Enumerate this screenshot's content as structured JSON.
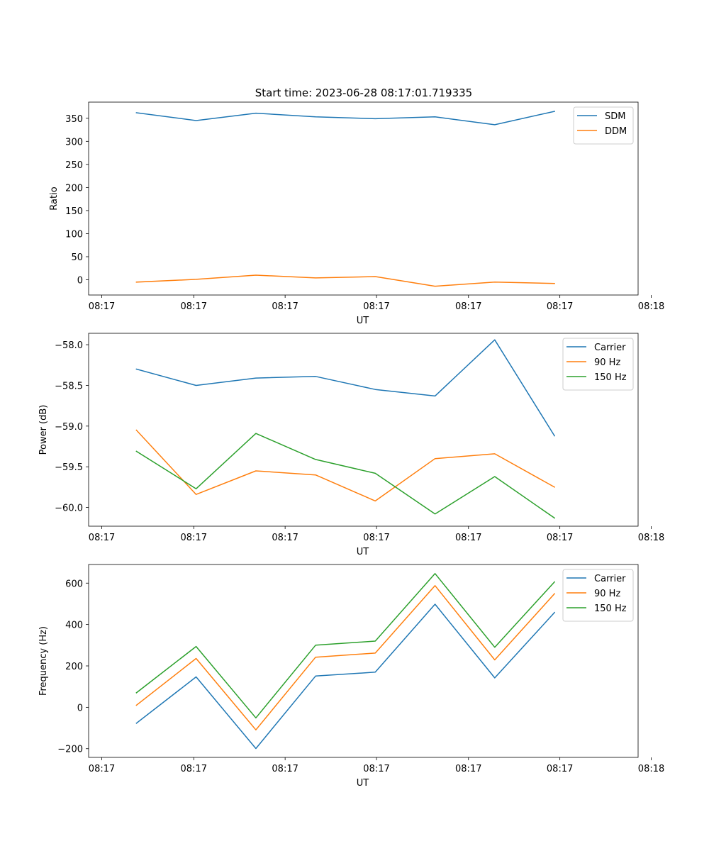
{
  "figure": {
    "title": "Start time: 2023-06-28 08:17:01.719335"
  },
  "colors": {
    "blue": "#1f77b4",
    "orange": "#ff7f0e",
    "green": "#2ca02c"
  },
  "chart_data": [
    {
      "type": "line",
      "title": "Start time: 2023-06-28 08:17:01.719335",
      "xlabel": "UT",
      "ylabel": "Ratio",
      "x_positions": [
        1,
        2,
        3,
        4,
        5,
        6,
        7,
        8
      ],
      "xlim": [
        0.2,
        9.4
      ],
      "xticks": [
        0.42,
        1.96,
        3.49,
        5.02,
        6.56,
        8.09,
        9.62
      ],
      "xtick_labels": [
        "08:17",
        "08:17",
        "08:17",
        "08:17",
        "08:17",
        "08:17",
        "08:18"
      ],
      "ylim": [
        -33,
        385
      ],
      "yticks": [
        0,
        50,
        100,
        150,
        200,
        250,
        300,
        350
      ],
      "ytick_labels": [
        "0",
        "50",
        "100",
        "150",
        "200",
        "250",
        "300",
        "350"
      ],
      "legend_position": "top-right",
      "series": [
        {
          "name": "SDM",
          "color": "#1f77b4",
          "values": [
            362,
            345,
            361,
            353,
            349,
            353,
            336,
            365
          ]
        },
        {
          "name": "DDM",
          "color": "#ff7f0e",
          "values": [
            -5,
            1,
            10,
            4,
            7,
            -14,
            -5,
            -8
          ]
        }
      ]
    },
    {
      "type": "line",
      "title": "",
      "xlabel": "UT",
      "ylabel": "Power (dB)",
      "x_positions": [
        1,
        2,
        3,
        4,
        5,
        6,
        7,
        8
      ],
      "xlim": [
        0.2,
        9.4
      ],
      "xticks": [
        0.42,
        1.96,
        3.49,
        5.02,
        6.56,
        8.09,
        9.62
      ],
      "xtick_labels": [
        "08:17",
        "08:17",
        "08:17",
        "08:17",
        "08:17",
        "08:17",
        "08:18"
      ],
      "ylim": [
        -60.23,
        -57.86
      ],
      "yticks": [
        -60.0,
        -59.5,
        -59.0,
        -58.5,
        -58.0
      ],
      "ytick_labels": [
        "−60.0",
        "−59.5",
        "−59.0",
        "−58.5",
        "−58.0"
      ],
      "legend_position": "top-right",
      "series": [
        {
          "name": "Carrier",
          "color": "#1f77b4",
          "values": [
            -58.3,
            -58.5,
            -58.41,
            -58.39,
            -58.55,
            -58.63,
            -57.94,
            -59.12
          ]
        },
        {
          "name": "90 Hz",
          "color": "#ff7f0e",
          "values": [
            -59.05,
            -59.84,
            -59.55,
            -59.6,
            -59.92,
            -59.4,
            -59.34,
            -59.75
          ]
        },
        {
          "name": "150 Hz",
          "color": "#2ca02c",
          "values": [
            -59.31,
            -59.77,
            -59.09,
            -59.41,
            -59.58,
            -60.08,
            -59.62,
            -60.13
          ]
        }
      ]
    },
    {
      "type": "line",
      "title": "",
      "xlabel": "UT",
      "ylabel": "Frequency (Hz)",
      "x_positions": [
        1,
        2,
        3,
        4,
        5,
        6,
        7,
        8
      ],
      "xlim": [
        0.2,
        9.4
      ],
      "xticks": [
        0.42,
        1.96,
        3.49,
        5.02,
        6.56,
        8.09,
        9.62
      ],
      "xtick_labels": [
        "08:17",
        "08:17",
        "08:17",
        "08:17",
        "08:17",
        "08:17",
        "08:18"
      ],
      "ylim": [
        -242,
        690
      ],
      "yticks": [
        -200,
        0,
        200,
        400,
        600
      ],
      "ytick_labels": [
        "−200",
        "0",
        "200",
        "400",
        "600"
      ],
      "legend_position": "top-right",
      "series": [
        {
          "name": "Carrier",
          "color": "#1f77b4",
          "values": [
            -77,
            147,
            -199,
            151,
            170,
            498,
            142,
            458
          ]
        },
        {
          "name": "90 Hz",
          "color": "#ff7f0e",
          "values": [
            10,
            236,
            -109,
            242,
            262,
            588,
            229,
            549
          ]
        },
        {
          "name": "150 Hz",
          "color": "#2ca02c",
          "values": [
            70,
            294,
            -51,
            300,
            320,
            646,
            290,
            606
          ]
        }
      ]
    }
  ]
}
